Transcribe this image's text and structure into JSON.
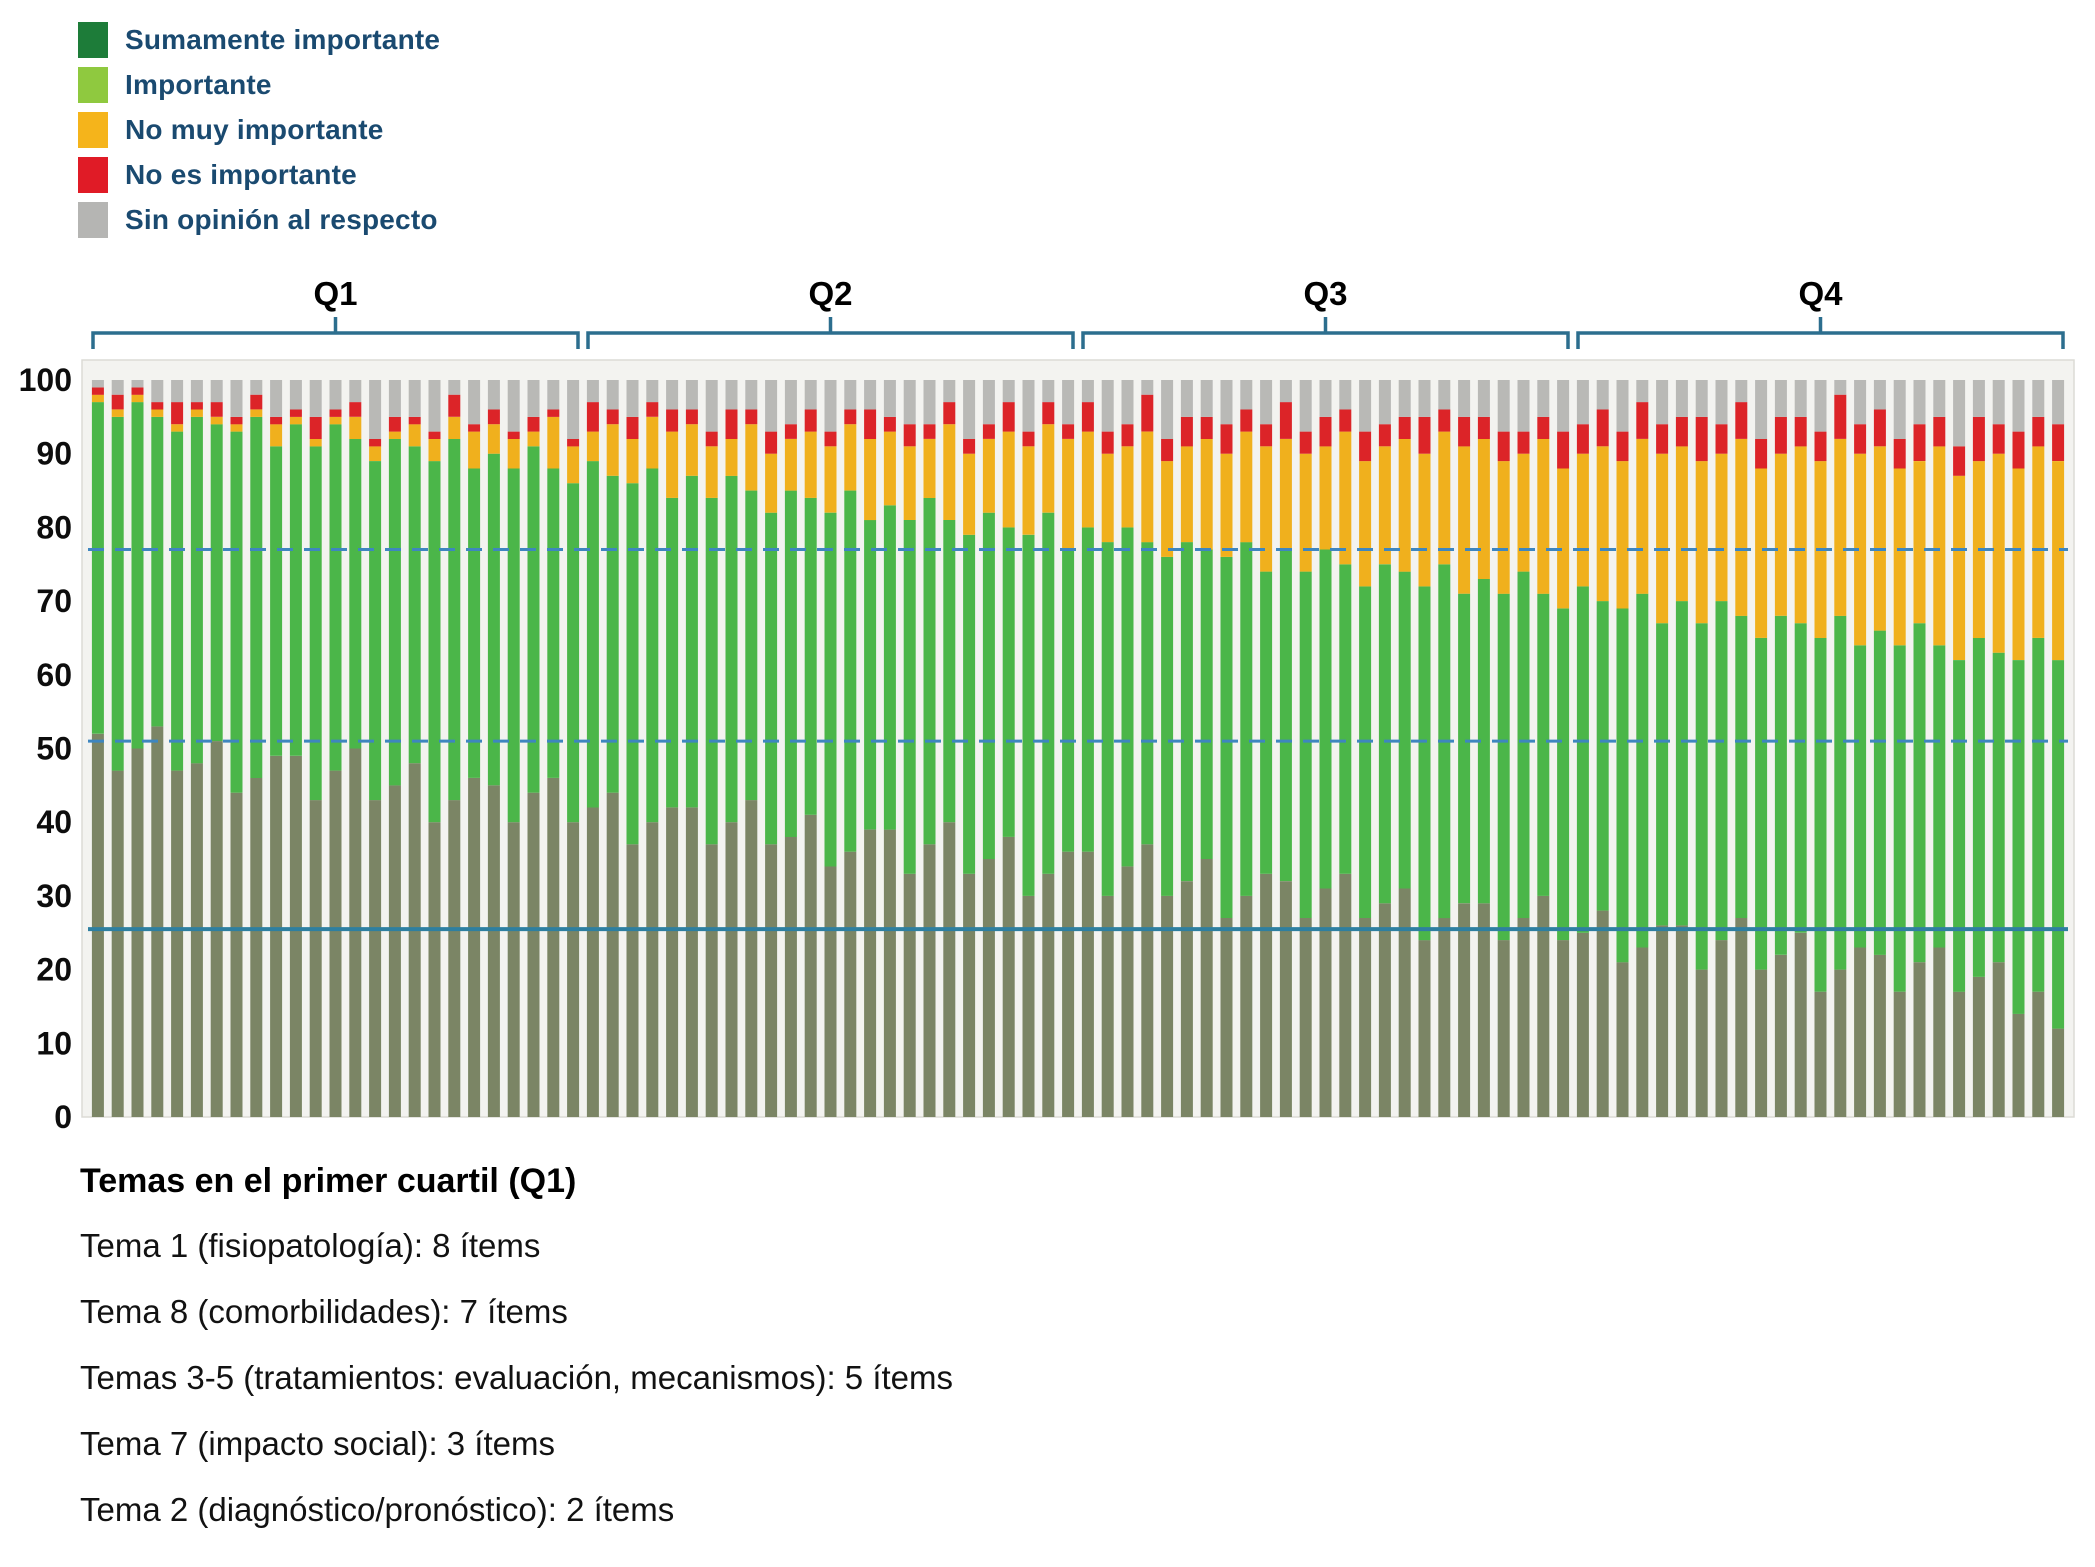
{
  "legend": {
    "items": [
      {
        "label": "Sumamente importante",
        "color": "#1d7c39"
      },
      {
        "label": "Importante",
        "color": "#8fc93f"
      },
      {
        "label": "No muy importante",
        "color": "#f5b41b"
      },
      {
        "label": "No es importante",
        "color": "#e01b26"
      },
      {
        "label": "Sin opinión al respecto",
        "color": "#b5b5b3"
      }
    ]
  },
  "chart_data": {
    "type": "bar",
    "stacked": true,
    "orientation": "vertical",
    "ylim": [
      0,
      100
    ],
    "yticks": [
      0,
      10,
      20,
      30,
      40,
      50,
      60,
      70,
      80,
      90,
      100
    ],
    "quartile_labels": [
      "Q1",
      "Q2",
      "Q3",
      "Q4"
    ],
    "items_per_quartile": 25,
    "bracket_color": "#2c6e8e",
    "thresholds": [
      {
        "value": 77,
        "style": "dashed",
        "color": "#3e86bf"
      },
      {
        "value": 51,
        "style": "dashed",
        "color": "#3e86bf"
      },
      {
        "value": 25.5,
        "style": "solid",
        "color": "#2e7fa0"
      }
    ],
    "series": [
      {
        "name": "Sumamente importante",
        "color": "#7b8565",
        "values": [
          52,
          47,
          50,
          53,
          47,
          48,
          51,
          44,
          46,
          49,
          49,
          43,
          47,
          50,
          43,
          45,
          48,
          40,
          43,
          46,
          45,
          40,
          44,
          46,
          40,
          42,
          44,
          37,
          40,
          42,
          42,
          37,
          40,
          43,
          37,
          38,
          41,
          34,
          36,
          39,
          39,
          33,
          37,
          40,
          33,
          35,
          38,
          30,
          33,
          36,
          36,
          30,
          34,
          37,
          30,
          32,
          35,
          27,
          30,
          33,
          32,
          27,
          31,
          33,
          27,
          29,
          31,
          24,
          27,
          29,
          29,
          24,
          27,
          30,
          24,
          25,
          28,
          21,
          23,
          26,
          26,
          20,
          24,
          27,
          20,
          22,
          25,
          17,
          20,
          23,
          22,
          17,
          21,
          23,
          17,
          19,
          21,
          14,
          17,
          12
        ]
      },
      {
        "name": "Importante",
        "color": "#4bb649",
        "values": [
          45,
          48,
          47,
          42,
          46,
          47,
          43,
          49,
          49,
          42,
          45,
          48,
          47,
          42,
          46,
          47,
          43,
          49,
          49,
          42,
          45,
          48,
          47,
          42,
          46,
          47,
          43,
          49,
          48,
          42,
          45,
          47,
          47,
          42,
          45,
          47,
          43,
          48,
          49,
          42,
          44,
          48,
          47,
          41,
          46,
          47,
          42,
          49,
          49,
          41,
          44,
          48,
          46,
          41,
          46,
          46,
          42,
          49,
          48,
          41,
          45,
          47,
          46,
          42,
          45,
          46,
          43,
          48,
          48,
          42,
          44,
          47,
          47,
          41,
          45,
          47,
          42,
          48,
          48,
          41,
          44,
          47,
          46,
          41,
          45,
          46,
          42,
          48,
          48,
          41,
          44,
          47,
          46,
          41,
          45,
          46,
          42,
          48,
          48,
          50
        ]
      },
      {
        "name": "No muy importante",
        "color": "#f0b01d",
        "values": [
          1,
          1,
          1,
          1,
          1,
          1,
          1,
          1,
          1,
          3,
          1,
          1,
          1,
          3,
          2,
          1,
          3,
          3,
          3,
          5,
          4,
          4,
          2,
          7,
          5,
          4,
          7,
          6,
          7,
          9,
          7,
          7,
          5,
          9,
          8,
          7,
          9,
          9,
          9,
          11,
          10,
          10,
          8,
          13,
          11,
          10,
          13,
          12,
          12,
          15,
          13,
          12,
          11,
          15,
          13,
          13,
          15,
          14,
          15,
          17,
          15,
          16,
          14,
          18,
          17,
          16,
          18,
          18,
          18,
          20,
          19,
          18,
          16,
          21,
          19,
          18,
          21,
          20,
          21,
          23,
          21,
          22,
          20,
          24,
          23,
          22,
          24,
          24,
          24,
          26,
          25,
          24,
          22,
          27,
          25,
          24,
          27,
          26,
          26,
          27
        ]
      },
      {
        "name": "No es importante",
        "color": "#dc2428",
        "values": [
          1,
          2,
          1,
          1,
          3,
          1,
          2,
          1,
          2,
          1,
          1,
          3,
          1,
          2,
          1,
          2,
          1,
          1,
          3,
          1,
          2,
          1,
          2,
          1,
          1,
          4,
          2,
          3,
          2,
          3,
          2,
          2,
          4,
          2,
          3,
          2,
          3,
          2,
          2,
          4,
          2,
          3,
          2,
          3,
          2,
          2,
          4,
          2,
          3,
          2,
          4,
          3,
          3,
          5,
          3,
          4,
          3,
          4,
          3,
          3,
          5,
          3,
          4,
          3,
          4,
          3,
          3,
          5,
          3,
          4,
          3,
          4,
          3,
          3,
          5,
          4,
          5,
          4,
          5,
          4,
          4,
          6,
          4,
          5,
          4,
          5,
          4,
          4,
          6,
          4,
          5,
          4,
          5,
          4,
          4,
          6,
          4,
          5,
          4,
          5
        ]
      },
      {
        "name": "Sin opinión al respecto",
        "color": "#b9b9b6",
        "values": [
          1,
          2,
          1,
          3,
          3,
          3,
          3,
          5,
          2,
          5,
          4,
          5,
          4,
          3,
          8,
          5,
          5,
          7,
          2,
          6,
          4,
          7,
          5,
          4,
          8,
          3,
          4,
          5,
          3,
          4,
          4,
          7,
          4,
          4,
          7,
          6,
          4,
          7,
          4,
          4,
          5,
          6,
          6,
          3,
          8,
          6,
          3,
          7,
          3,
          6,
          3,
          7,
          6,
          2,
          8,
          5,
          5,
          6,
          4,
          6,
          3,
          7,
          5,
          4,
          7,
          6,
          5,
          5,
          4,
          5,
          5,
          7,
          7,
          5,
          7,
          6,
          4,
          7,
          3,
          6,
          5,
          5,
          6,
          3,
          8,
          5,
          5,
          7,
          2,
          6,
          4,
          8,
          6,
          5,
          9,
          5,
          6,
          7,
          5,
          6
        ]
      }
    ]
  },
  "footer": {
    "title": "Temas en el primer cuartil (Q1)",
    "lines": [
      "Tema 1 (fisiopatología): 8 ítems",
      "Tema 8 (comorbilidades): 7 ítems",
      "Temas 3-5 (tratamientos: evaluación, mecanismos): 5 ítems",
      "Tema 7 (impacto social): 3 ítems",
      "Tema 2 (diagnóstico/pronóstico): 2 ítems"
    ]
  }
}
